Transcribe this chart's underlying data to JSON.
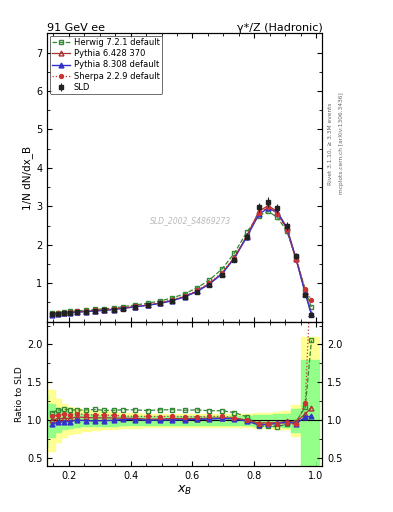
{
  "title_left": "91 GeV ee",
  "title_right": "γ*/Z (Hadronic)",
  "right_label1": "Rivet 3.1.10, ≥ 3.3M events",
  "right_label2": "mcplots.cern.ch [arXiv:1306.3436]",
  "analysis_id": "SLD_2002_S4869273",
  "ylabel_main": "1/N dN/dx_B",
  "ylabel_ratio": "Ratio to SLD",
  "xlabel": "x_B",
  "xlim": [
    0.13,
    1.02
  ],
  "ylim_main": [
    0.0,
    7.5
  ],
  "ylim_ratio": [
    0.4,
    2.3
  ],
  "sld_x": [
    0.145,
    0.165,
    0.185,
    0.205,
    0.225,
    0.255,
    0.285,
    0.315,
    0.345,
    0.375,
    0.415,
    0.455,
    0.495,
    0.535,
    0.575,
    0.615,
    0.655,
    0.695,
    0.735,
    0.775,
    0.815,
    0.845,
    0.875,
    0.905,
    0.935,
    0.965,
    0.985
  ],
  "sld_y": [
    0.195,
    0.21,
    0.22,
    0.235,
    0.245,
    0.262,
    0.278,
    0.296,
    0.316,
    0.342,
    0.382,
    0.425,
    0.474,
    0.542,
    0.642,
    0.775,
    0.963,
    1.21,
    1.61,
    2.21,
    2.97,
    3.12,
    2.95,
    2.49,
    1.7,
    0.7,
    0.18
  ],
  "sld_yerr": [
    0.018,
    0.018,
    0.018,
    0.018,
    0.018,
    0.018,
    0.018,
    0.018,
    0.018,
    0.02,
    0.02,
    0.02,
    0.022,
    0.025,
    0.028,
    0.032,
    0.04,
    0.05,
    0.07,
    0.09,
    0.12,
    0.13,
    0.12,
    0.1,
    0.08,
    0.05,
    0.03
  ],
  "herwig_x": [
    0.145,
    0.165,
    0.185,
    0.205,
    0.225,
    0.255,
    0.285,
    0.315,
    0.345,
    0.375,
    0.415,
    0.455,
    0.495,
    0.535,
    0.575,
    0.615,
    0.655,
    0.695,
    0.735,
    0.775,
    0.815,
    0.845,
    0.875,
    0.905,
    0.935,
    0.965,
    0.985
  ],
  "herwig_y": [
    0.215,
    0.238,
    0.252,
    0.268,
    0.278,
    0.298,
    0.318,
    0.335,
    0.358,
    0.39,
    0.435,
    0.48,
    0.54,
    0.618,
    0.728,
    0.882,
    1.085,
    1.365,
    1.775,
    2.32,
    2.76,
    2.87,
    2.71,
    2.36,
    1.67,
    0.82,
    0.37
  ],
  "pythia6_x": [
    0.145,
    0.165,
    0.185,
    0.205,
    0.225,
    0.255,
    0.285,
    0.315,
    0.345,
    0.375,
    0.415,
    0.455,
    0.495,
    0.535,
    0.575,
    0.615,
    0.655,
    0.695,
    0.735,
    0.775,
    0.815,
    0.845,
    0.875,
    0.905,
    0.935,
    0.965,
    0.985
  ],
  "pythia6_y": [
    0.195,
    0.215,
    0.226,
    0.241,
    0.256,
    0.272,
    0.287,
    0.306,
    0.326,
    0.352,
    0.392,
    0.432,
    0.482,
    0.556,
    0.656,
    0.793,
    0.99,
    1.25,
    1.66,
    2.22,
    2.87,
    3.02,
    2.86,
    2.46,
    1.66,
    0.76,
    0.21
  ],
  "pythia8_x": [
    0.145,
    0.165,
    0.185,
    0.205,
    0.225,
    0.255,
    0.285,
    0.315,
    0.345,
    0.375,
    0.415,
    0.455,
    0.495,
    0.535,
    0.575,
    0.615,
    0.655,
    0.695,
    0.735,
    0.775,
    0.815,
    0.845,
    0.875,
    0.905,
    0.935,
    0.965,
    0.985
  ],
  "pythia8_y": [
    0.185,
    0.205,
    0.216,
    0.231,
    0.246,
    0.261,
    0.276,
    0.295,
    0.316,
    0.346,
    0.386,
    0.426,
    0.476,
    0.546,
    0.646,
    0.786,
    0.98,
    1.24,
    1.64,
    2.19,
    2.79,
    2.96,
    2.83,
    2.43,
    1.63,
    0.73,
    0.19
  ],
  "sherpa_x": [
    0.145,
    0.165,
    0.185,
    0.205,
    0.225,
    0.255,
    0.285,
    0.315,
    0.345,
    0.375,
    0.415,
    0.455,
    0.495,
    0.535,
    0.575,
    0.615,
    0.655,
    0.695,
    0.735,
    0.775,
    0.815,
    0.845,
    0.875,
    0.905,
    0.935,
    0.965,
    0.985
  ],
  "sherpa_y": [
    0.205,
    0.225,
    0.238,
    0.253,
    0.267,
    0.282,
    0.298,
    0.317,
    0.337,
    0.362,
    0.402,
    0.447,
    0.498,
    0.572,
    0.672,
    0.812,
    1.013,
    1.275,
    1.665,
    2.21,
    2.83,
    2.99,
    2.81,
    2.39,
    1.61,
    0.86,
    0.56
  ],
  "sld_color": "#222222",
  "herwig_color": "#338833",
  "pythia6_color": "#aa3333",
  "pythia8_color": "#3333cc",
  "sherpa_color": "#cc3333",
  "band_x": [
    0.13,
    0.155,
    0.175,
    0.195,
    0.215,
    0.235,
    0.27,
    0.3,
    0.33,
    0.36,
    0.395,
    0.435,
    0.475,
    0.515,
    0.555,
    0.595,
    0.635,
    0.675,
    0.715,
    0.755,
    0.795,
    0.83,
    0.86,
    0.89,
    0.92,
    0.95,
    1.01
  ],
  "yband_hi": [
    1.55,
    1.4,
    1.28,
    1.22,
    1.18,
    1.16,
    1.14,
    1.13,
    1.12,
    1.11,
    1.1,
    1.1,
    1.09,
    1.09,
    1.09,
    1.09,
    1.09,
    1.09,
    1.09,
    1.09,
    1.09,
    1.1,
    1.1,
    1.11,
    1.12,
    1.2,
    2.1
  ],
  "yband_lo": [
    0.45,
    0.6,
    0.72,
    0.78,
    0.82,
    0.84,
    0.86,
    0.87,
    0.88,
    0.89,
    0.9,
    0.9,
    0.91,
    0.91,
    0.91,
    0.91,
    0.91,
    0.91,
    0.91,
    0.91,
    0.91,
    0.9,
    0.9,
    0.89,
    0.88,
    0.8,
    0.0
  ],
  "gband_hi": [
    1.35,
    1.22,
    1.15,
    1.12,
    1.1,
    1.09,
    1.08,
    1.07,
    1.07,
    1.07,
    1.06,
    1.06,
    1.06,
    1.06,
    1.06,
    1.06,
    1.06,
    1.06,
    1.06,
    1.06,
    1.06,
    1.07,
    1.07,
    1.08,
    1.09,
    1.15,
    1.8
  ],
  "gband_lo": [
    0.65,
    0.78,
    0.85,
    0.88,
    0.9,
    0.91,
    0.92,
    0.93,
    0.93,
    0.93,
    0.94,
    0.94,
    0.94,
    0.94,
    0.94,
    0.94,
    0.94,
    0.94,
    0.94,
    0.94,
    0.94,
    0.93,
    0.93,
    0.92,
    0.91,
    0.85,
    0.2
  ]
}
